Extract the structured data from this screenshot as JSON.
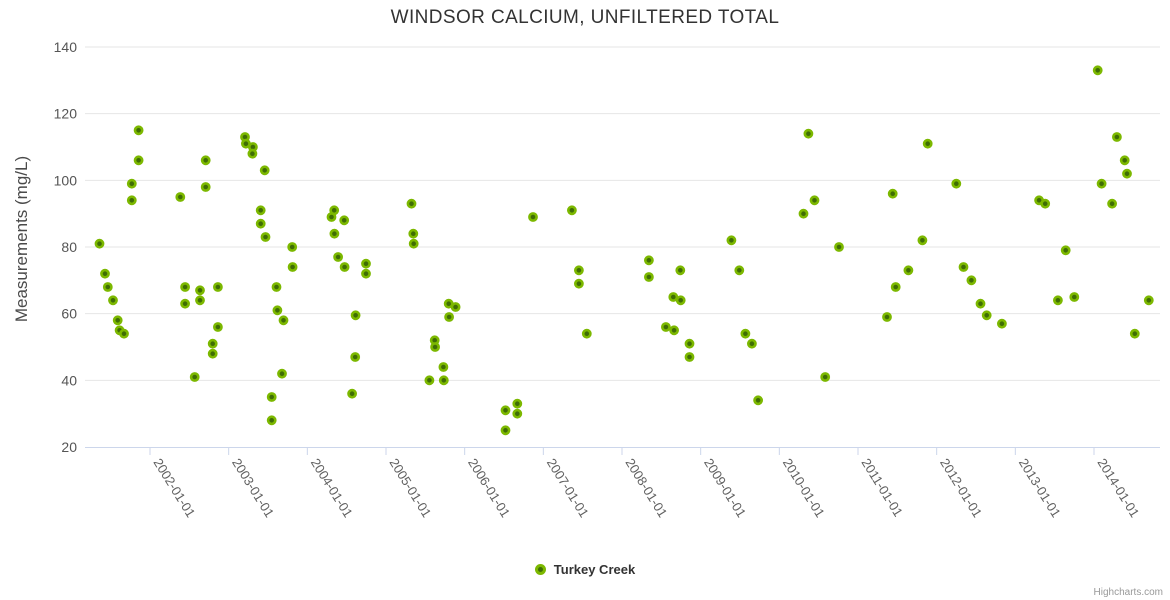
{
  "chart": {
    "title": "WINDSOR CALCIUM, UNFILTERED TOTAL",
    "y_axis_title": "Measurements (mg/L)",
    "legend": {
      "label": "Turkey Creek"
    },
    "credits": "Highcharts.com"
  },
  "chart_data": {
    "type": "scatter",
    "title": "WINDSOR CALCIUM, UNFILTERED TOTAL",
    "xlabel": "",
    "ylabel": "Measurements (mg/L)",
    "ylim": [
      20,
      140
    ],
    "y_ticks": [
      20,
      40,
      60,
      80,
      100,
      120,
      140
    ],
    "x_ticks": [
      "2002-01-01",
      "2003-01-01",
      "2004-01-01",
      "2005-01-01",
      "2006-01-01",
      "2007-01-01",
      "2008-01-01",
      "2009-01-01",
      "2010-01-01",
      "2011-01-01",
      "2012-01-01",
      "2013-01-01",
      "2014-01-01"
    ],
    "grid": "horizontal",
    "legend_position": "bottom",
    "colors": {
      "marker_stroke": "#7cb800",
      "marker_fill": "#3f6d05",
      "grid": "#e6e6e6",
      "axis_line": "#ccd6eb",
      "tick_label": "#606060",
      "title": "#333333"
    },
    "series": [
      {
        "name": "Turkey Creek",
        "points": [
          [
            "2001-05-10",
            81
          ],
          [
            "2001-06-05",
            72
          ],
          [
            "2001-06-18",
            68
          ],
          [
            "2001-07-12",
            64
          ],
          [
            "2001-08-03",
            58
          ],
          [
            "2001-08-12",
            55
          ],
          [
            "2001-09-02",
            54
          ],
          [
            "2001-10-08",
            99
          ],
          [
            "2001-10-08",
            94
          ],
          [
            "2001-11-09",
            115
          ],
          [
            "2001-11-09",
            106
          ],
          [
            "2002-05-20",
            95
          ],
          [
            "2002-06-12",
            68
          ],
          [
            "2002-06-12",
            63
          ],
          [
            "2002-07-26",
            41
          ],
          [
            "2002-08-20",
            67
          ],
          [
            "2002-08-20",
            64
          ],
          [
            "2002-09-16",
            106
          ],
          [
            "2002-09-16",
            98
          ],
          [
            "2002-10-18",
            51
          ],
          [
            "2002-10-18",
            48
          ],
          [
            "2002-11-12",
            68
          ],
          [
            "2002-11-12",
            56
          ],
          [
            "2003-03-16",
            113
          ],
          [
            "2003-03-20",
            111
          ],
          [
            "2003-04-22",
            110
          ],
          [
            "2003-04-20",
            108
          ],
          [
            "2003-05-28",
            91
          ],
          [
            "2003-05-28",
            87
          ],
          [
            "2003-06-16",
            103
          ],
          [
            "2003-06-20",
            83
          ],
          [
            "2003-07-18",
            35
          ],
          [
            "2003-07-18",
            28
          ],
          [
            "2003-08-10",
            68
          ],
          [
            "2003-08-14",
            61
          ],
          [
            "2003-09-12",
            58
          ],
          [
            "2003-09-05",
            42
          ],
          [
            "2003-10-22",
            80
          ],
          [
            "2003-10-24",
            74
          ],
          [
            "2004-04-22",
            89
          ],
          [
            "2004-05-04",
            91
          ],
          [
            "2004-05-05",
            84
          ],
          [
            "2004-05-22",
            77
          ],
          [
            "2004-06-20",
            88
          ],
          [
            "2004-06-22",
            74
          ],
          [
            "2004-07-26",
            36
          ],
          [
            "2004-08-12",
            59.5
          ],
          [
            "2004-08-10",
            47
          ],
          [
            "2004-09-30",
            75
          ],
          [
            "2004-09-30",
            72
          ],
          [
            "2005-04-28",
            93
          ],
          [
            "2005-05-06",
            84
          ],
          [
            "2005-05-08",
            81
          ],
          [
            "2005-07-20",
            40
          ],
          [
            "2005-08-14",
            52
          ],
          [
            "2005-08-16",
            50
          ],
          [
            "2005-09-24",
            44
          ],
          [
            "2005-09-26",
            40
          ],
          [
            "2005-10-18",
            63
          ],
          [
            "2005-10-20",
            59
          ],
          [
            "2005-11-20",
            62
          ],
          [
            "2006-07-08",
            31
          ],
          [
            "2006-07-08",
            25
          ],
          [
            "2006-09-02",
            33
          ],
          [
            "2006-09-02",
            30
          ],
          [
            "2006-11-14",
            89
          ],
          [
            "2007-05-12",
            91
          ],
          [
            "2007-06-14",
            73
          ],
          [
            "2007-06-14",
            69
          ],
          [
            "2007-07-20",
            54
          ],
          [
            "2008-05-04",
            76
          ],
          [
            "2008-05-04",
            71
          ],
          [
            "2008-07-22",
            56
          ],
          [
            "2008-08-26",
            65
          ],
          [
            "2008-08-30",
            55
          ],
          [
            "2008-09-28",
            73
          ],
          [
            "2008-09-30",
            64
          ],
          [
            "2008-11-10",
            51
          ],
          [
            "2008-11-10",
            47
          ],
          [
            "2009-05-22",
            82
          ],
          [
            "2009-06-28",
            73
          ],
          [
            "2009-07-26",
            54
          ],
          [
            "2009-08-26",
            51
          ],
          [
            "2009-09-24",
            34
          ],
          [
            "2010-04-22",
            90
          ],
          [
            "2010-05-14",
            114
          ],
          [
            "2010-06-12",
            94
          ],
          [
            "2010-08-01",
            41
          ],
          [
            "2010-10-04",
            80
          ],
          [
            "2011-05-14",
            59
          ],
          [
            "2011-06-10",
            96
          ],
          [
            "2011-06-24",
            68
          ],
          [
            "2011-08-22",
            73
          ],
          [
            "2011-10-26",
            82
          ],
          [
            "2011-11-20",
            111
          ],
          [
            "2012-04-01",
            99
          ],
          [
            "2012-05-04",
            74
          ],
          [
            "2012-06-10",
            70
          ],
          [
            "2012-07-22",
            63
          ],
          [
            "2012-08-20",
            59.5
          ],
          [
            "2012-10-30",
            57
          ],
          [
            "2013-04-20",
            94
          ],
          [
            "2013-05-18",
            93
          ],
          [
            "2013-07-16",
            64
          ],
          [
            "2013-08-22",
            79
          ],
          [
            "2013-10-01",
            65
          ],
          [
            "2014-01-18",
            133
          ],
          [
            "2014-02-06",
            99
          ],
          [
            "2014-03-24",
            93
          ],
          [
            "2014-04-16",
            113
          ],
          [
            "2014-05-22",
            106
          ],
          [
            "2014-06-02",
            102
          ],
          [
            "2014-07-08",
            54
          ],
          [
            "2014-09-12",
            64
          ]
        ]
      }
    ]
  }
}
